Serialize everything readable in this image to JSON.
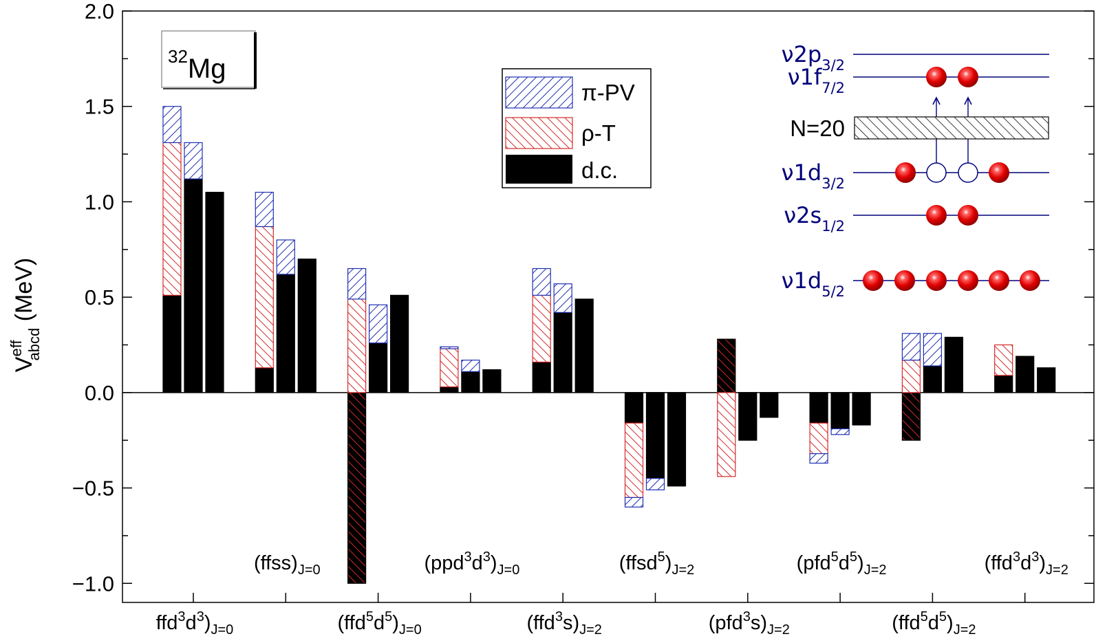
{
  "chart_data": {
    "type": "bar",
    "ylabel": {
      "base": "V",
      "sup": "eff",
      "sub": "abcd",
      "unit": " (MeV)"
    },
    "ylim": [
      -1.1,
      2.0
    ],
    "yticks": [
      2.0,
      1.5,
      1.0,
      0.5,
      0.0,
      -0.5,
      -1.0
    ],
    "ytick_labels": [
      "2.0",
      "1.5",
      "1.0",
      "0.5",
      "0.0",
      "−0.5",
      "−1.0"
    ],
    "nucleus": {
      "mass": "32",
      "symbol": "Mg"
    },
    "legend": [
      {
        "key": "pi_pv",
        "label": "π-PV"
      },
      {
        "key": "rho_t",
        "label": "ρ-T"
      },
      {
        "key": "dc",
        "label": "d.c."
      }
    ],
    "colors": {
      "pi_pv": "#1f2fb0",
      "rho_t": "#d42a2a",
      "dc": "#000000",
      "orbit": "#00007a",
      "particle": "#e00000"
    },
    "categories": [
      {
        "main": "(ffd",
        "parts": [
          [
            "ffd",
            ""
          ],
          [
            "3",
            "sup"
          ],
          [
            "d",
            ""
          ],
          [
            "3",
            "sup"
          ],
          [
            ")",
            ""
          ],
          [
            "J=0",
            "sub"
          ]
        ],
        "row": "bottom",
        "bars": [
          {
            "dc": 0.51,
            "rho_t": 0.8,
            "pi_pv": 0.19
          },
          {
            "dc": 1.12,
            "rho_t": 0.0,
            "pi_pv": 0.19
          },
          {
            "dc": 1.05,
            "rho_t": 0.0,
            "pi_pv": 0.0
          }
        ]
      },
      {
        "parts": [
          [
            "(ffss)",
            ""
          ],
          [
            "J=0",
            "sub"
          ]
        ],
        "row": "top",
        "bars": [
          {
            "dc": 0.13,
            "rho_t": 0.74,
            "pi_pv": 0.18
          },
          {
            "dc": 0.62,
            "rho_t": 0.0,
            "pi_pv": 0.18
          },
          {
            "dc": 0.7,
            "rho_t": 0.0,
            "pi_pv": 0.0
          }
        ]
      },
      {
        "parts": [
          [
            "(ffd",
            ""
          ],
          [
            "5",
            "sup"
          ],
          [
            "d",
            ""
          ],
          [
            "5",
            "sup"
          ],
          [
            ")",
            ""
          ],
          [
            "J=0",
            "sub"
          ]
        ],
        "row": "bottom",
        "bars": [
          {
            "dc": -1.0,
            "rho_t": 0.49,
            "pi_pv": 0.16
          },
          {
            "dc": 0.26,
            "rho_t": 0.0,
            "pi_pv": 0.2
          },
          {
            "dc": 0.51,
            "rho_t": 0.0,
            "pi_pv": 0.0
          }
        ]
      },
      {
        "parts": [
          [
            "(ppd",
            ""
          ],
          [
            "3",
            "sup"
          ],
          [
            "d",
            ""
          ],
          [
            "3",
            "sup"
          ],
          [
            ")",
            ""
          ],
          [
            "J=0",
            "sub"
          ]
        ],
        "row": "top",
        "bars": [
          {
            "dc": 0.03,
            "rho_t": 0.2,
            "pi_pv": 0.01
          },
          {
            "dc": 0.11,
            "rho_t": 0.0,
            "pi_pv": 0.06
          },
          {
            "dc": 0.12,
            "rho_t": 0.0,
            "pi_pv": 0.0
          }
        ]
      },
      {
        "parts": [
          [
            "(ffd",
            ""
          ],
          [
            "3",
            "sup"
          ],
          [
            "s)",
            ""
          ],
          [
            "J=2",
            "sub"
          ]
        ],
        "row": "bottom",
        "bars": [
          {
            "dc": 0.16,
            "rho_t": 0.35,
            "pi_pv": 0.14
          },
          {
            "dc": 0.42,
            "rho_t": 0.0,
            "pi_pv": 0.15
          },
          {
            "dc": 0.49,
            "rho_t": 0.0,
            "pi_pv": 0.0
          }
        ]
      },
      {
        "parts": [
          [
            "(ffsd",
            ""
          ],
          [
            "5",
            "sup"
          ],
          [
            ")",
            ""
          ],
          [
            "J=2",
            "sub"
          ]
        ],
        "row": "top",
        "bars": [
          {
            "dc": -0.16,
            "rho_t": -0.39,
            "pi_pv": -0.05
          },
          {
            "dc": -0.45,
            "rho_t": 0.0,
            "pi_pv": -0.06
          },
          {
            "dc": -0.49,
            "rho_t": 0.0,
            "pi_pv": 0.0
          }
        ]
      },
      {
        "parts": [
          [
            "(pfd",
            ""
          ],
          [
            "3",
            "sup"
          ],
          [
            "s)",
            ""
          ],
          [
            "J=2",
            "sub"
          ]
        ],
        "row": "bottom",
        "bars": [
          {
            "dc": 0.28,
            "rho_t": -0.44,
            "pi_pv": 0.0
          },
          {
            "dc": -0.25,
            "rho_t": 0.0,
            "pi_pv": 0.0
          },
          {
            "dc": -0.13,
            "rho_t": 0.0,
            "pi_pv": 0.0
          }
        ]
      },
      {
        "parts": [
          [
            "(pfd",
            ""
          ],
          [
            "5",
            "sup"
          ],
          [
            "d",
            ""
          ],
          [
            "5",
            "sup"
          ],
          [
            ")",
            ""
          ],
          [
            "J=2",
            "sub"
          ]
        ],
        "row": "top",
        "bars": [
          {
            "dc": -0.16,
            "rho_t": -0.16,
            "pi_pv": -0.05
          },
          {
            "dc": -0.19,
            "rho_t": 0.0,
            "pi_pv": -0.03
          },
          {
            "dc": -0.17,
            "rho_t": 0.0,
            "pi_pv": 0.0
          }
        ]
      },
      {
        "parts": [
          [
            "(ffd",
            ""
          ],
          [
            "5",
            "sup"
          ],
          [
            "d",
            ""
          ],
          [
            "5",
            "sup"
          ],
          [
            ")",
            ""
          ],
          [
            "J=2",
            "sub"
          ]
        ],
        "row": "bottom",
        "bars": [
          {
            "dc": -0.25,
            "rho_t": 0.17,
            "pi_pv": 0.14
          },
          {
            "dc": 0.14,
            "rho_t": 0.0,
            "pi_pv": 0.17
          },
          {
            "dc": 0.29,
            "rho_t": 0.0,
            "pi_pv": 0.0
          }
        ]
      },
      {
        "parts": [
          [
            "(ffd",
            ""
          ],
          [
            "3",
            "sup"
          ],
          [
            "d",
            ""
          ],
          [
            "3",
            "sup"
          ],
          [
            ")",
            ""
          ],
          [
            "J=2",
            "sub"
          ]
        ],
        "row": "top",
        "bars": [
          {
            "dc": 0.09,
            "rho_t": 0.16,
            "pi_pv": 0.0
          },
          {
            "dc": 0.19,
            "rho_t": 0.0,
            "pi_pv": 0.0
          },
          {
            "dc": 0.13,
            "rho_t": 0.0,
            "pi_pv": 0.0
          }
        ]
      }
    ],
    "inset": {
      "gap_label": "N=20",
      "levels": [
        {
          "name": "2p",
          "sub": "3/2",
          "prefix": "ν",
          "filled": 0,
          "holes": 0
        },
        {
          "name": "1f",
          "sub": "7/2",
          "prefix": "ν",
          "filled": 2,
          "holes": 0
        },
        {
          "name": "1d",
          "sub": "3/2",
          "prefix": "ν",
          "filled": 2,
          "holes": 2
        },
        {
          "name": "2s",
          "sub": "1/2",
          "prefix": "ν",
          "filled": 2,
          "holes": 0
        },
        {
          "name": "1d",
          "sub": "5/2",
          "prefix": "ν",
          "filled": 6,
          "holes": 0
        }
      ]
    }
  }
}
